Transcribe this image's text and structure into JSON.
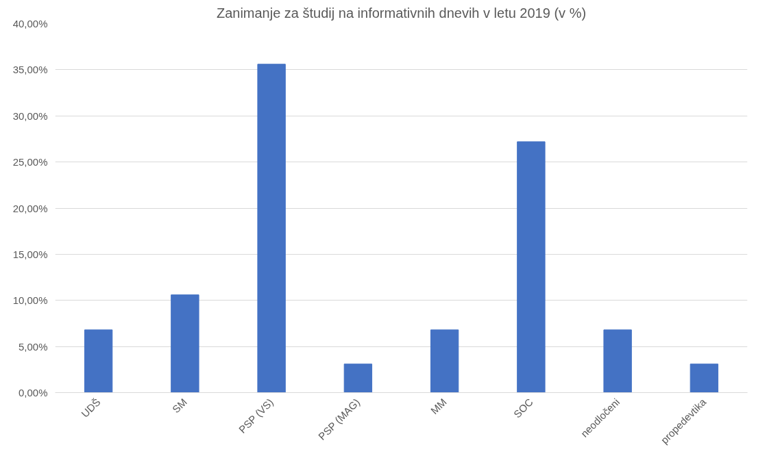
{
  "chart_data": {
    "type": "bar",
    "title": "Zanimanje za študij na informativnih dnevih v letu 2019 (v %)",
    "categories": [
      "UDŠ",
      "SM",
      "PSP (VS)",
      "PSP (MAG)",
      "MM",
      "SOC",
      "neodločeni",
      "propedevtika"
    ],
    "values": [
      6.8,
      10.6,
      35.6,
      3.1,
      6.8,
      27.2,
      6.8,
      3.1
    ],
    "color": "#4472c4",
    "ylim": [
      0,
      40
    ],
    "yticks": [
      {
        "value": 0,
        "label": "0,00%"
      },
      {
        "value": 5,
        "label": "5,00%"
      },
      {
        "value": 10,
        "label": "10,00%"
      },
      {
        "value": 15,
        "label": "15,00%"
      },
      {
        "value": 20,
        "label": "20,00%"
      },
      {
        "value": 25,
        "label": "25,00%"
      },
      {
        "value": 30,
        "label": "30,00%"
      },
      {
        "value": 35,
        "label": "35,00%"
      },
      {
        "value": 40,
        "label": "40,00%"
      }
    ],
    "grid": "y"
  }
}
